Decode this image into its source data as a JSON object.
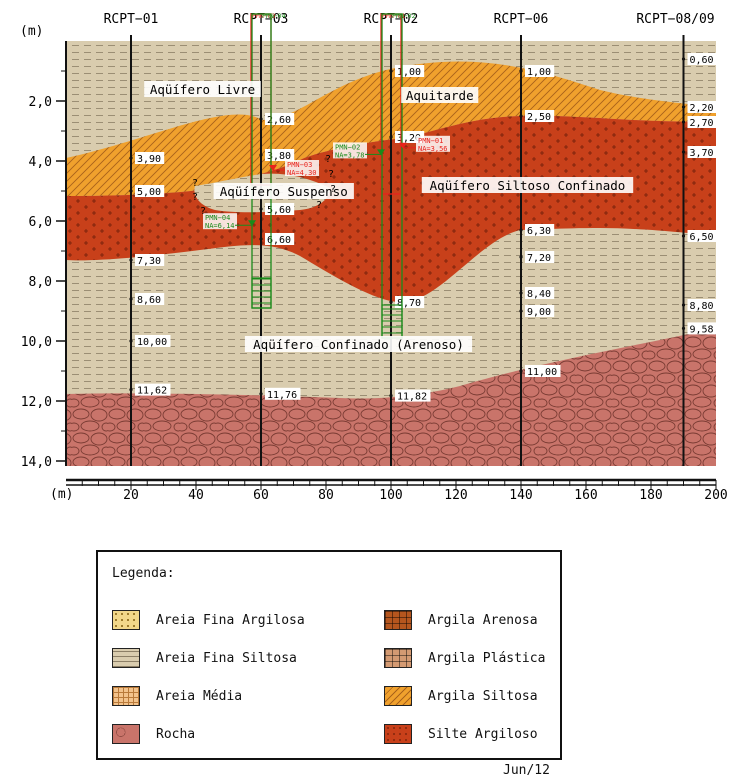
{
  "axes": {
    "y_unit": "(m)",
    "x_unit": "(m)",
    "y_ticks": [
      "2,0",
      "4,0",
      "6,0",
      "8,0",
      "10,0",
      "12,0",
      "14,0"
    ],
    "y_tick_values": [
      2,
      4,
      6,
      8,
      10,
      12,
      14
    ],
    "x_ticks": [
      "20",
      "40",
      "60",
      "80",
      "100",
      "120",
      "140",
      "160",
      "180",
      "200"
    ],
    "x_tick_values": [
      20,
      40,
      60,
      80,
      100,
      120,
      140,
      160,
      180,
      200
    ],
    "x_range": [
      0,
      200
    ],
    "y_range": [
      0,
      14
    ]
  },
  "boreholes": [
    {
      "name": "RCPT−01",
      "x": 20,
      "depth_labels": [
        {
          "t": "3,90",
          "d": 3.9
        },
        {
          "t": "5,00",
          "d": 5.0
        },
        {
          "t": "7,30",
          "d": 7.3
        },
        {
          "t": "8,60",
          "d": 8.6
        },
        {
          "t": "10,00",
          "d": 10.0
        },
        {
          "t": "11,62",
          "d": 11.62
        }
      ]
    },
    {
      "name": "RCPT−03",
      "x": 60,
      "depth_labels": [
        {
          "t": "2,60",
          "d": 2.6
        },
        {
          "t": "3,80",
          "d": 3.8
        },
        {
          "t": "5,60",
          "d": 5.6
        },
        {
          "t": "6,60",
          "d": 6.6
        },
        {
          "t": "11,76",
          "d": 11.76
        }
      ]
    },
    {
      "name": "RCPT−02",
      "x": 100,
      "depth_labels": [
        {
          "t": "1,00",
          "d": 1.0
        },
        {
          "t": "3,20",
          "d": 3.2
        },
        {
          "t": "8,70",
          "d": 8.7
        },
        {
          "t": "11,82",
          "d": 11.82
        }
      ]
    },
    {
      "name": "RCPT−06",
      "x": 140,
      "depth_labels": [
        {
          "t": "1,00",
          "d": 1.0
        },
        {
          "t": "2,50",
          "d": 2.5
        },
        {
          "t": "6,30",
          "d": 6.3
        },
        {
          "t": "7,20",
          "d": 7.2
        },
        {
          "t": "8,40",
          "d": 8.4
        },
        {
          "t": "9,00",
          "d": 9.0
        },
        {
          "t": "11,00",
          "d": 11.0
        }
      ]
    },
    {
      "name": "RCPT−08/09",
      "x": 190,
      "depth_labels": [
        {
          "t": "0,60",
          "d": 0.6
        },
        {
          "t": "2,20",
          "d": 2.2
        },
        {
          "t": "2,70",
          "d": 2.7
        },
        {
          "t": "3,70",
          "d": 3.7
        },
        {
          "t": "6,50",
          "d": 6.5
        },
        {
          "t": "8,80",
          "d": 8.8
        },
        {
          "t": "9,58",
          "d": 9.58
        }
      ]
    }
  ],
  "wells": [
    {
      "name": "PMN−03",
      "x": 60,
      "color": "#e8231c",
      "na": "NA=4,30",
      "na_depth": 4.3
    },
    {
      "name": "PMN−04",
      "x": 60,
      "color": "#1a8a1a",
      "na": "NA=6,14",
      "na_depth": 6.14
    },
    {
      "name": "PMN−01",
      "x": 100,
      "color": "#e8231c",
      "na": "NA=3,56",
      "na_depth": 3.56
    },
    {
      "name": "PMN−02",
      "x": 100,
      "color": "#1a8a1a",
      "na": "NA=3,78",
      "na_depth": 3.78
    }
  ],
  "unit_labels": [
    {
      "t": "Aqüífero Livre",
      "x": 42,
      "d": 1.7
    },
    {
      "t": "Aquitarde",
      "x": 115,
      "d": 1.9
    },
    {
      "t": "Aqüífero Suspenso",
      "x": 67,
      "d": 5.1
    },
    {
      "t": "Aqüífero Siltoso Confinado",
      "x": 142,
      "d": 4.9
    },
    {
      "t": "Aqüífero Confinado (Arenoso)",
      "x": 90,
      "d": 10.2
    }
  ],
  "legend": {
    "title": "Legenda:",
    "items": [
      {
        "label": "Areia Fina Argilosa",
        "color": "#f2d88a",
        "pattern": "dots"
      },
      {
        "label": "Argila Arenosa",
        "color": "#b5561e",
        "pattern": "brick"
      },
      {
        "label": "Areia Fina Siltosa",
        "color": "#d9ccae",
        "pattern": "dash"
      },
      {
        "label": "Argila Plástica",
        "color": "#d49a72",
        "pattern": "brick"
      },
      {
        "label": "Areia Média",
        "color": "#f3c38c",
        "pattern": "grid"
      },
      {
        "label": "Argila Siltosa",
        "color": "#f0a12d",
        "pattern": "hatch"
      },
      {
        "label": "Rocha",
        "color": "#c9746a",
        "pattern": "rock"
      },
      {
        "label": "Silte Argiloso",
        "color": "#c8401a",
        "pattern": "plus"
      }
    ]
  },
  "date": "Jun/12"
}
